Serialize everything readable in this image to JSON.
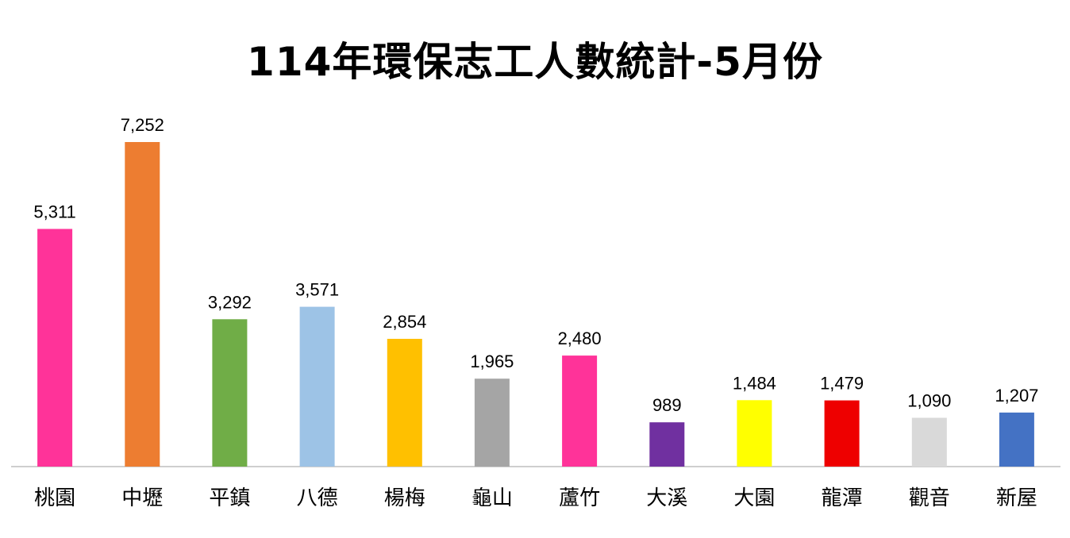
{
  "chart_data": {
    "type": "bar",
    "title": "114年環保志工人數統計-5月份",
    "xlabel": "",
    "ylabel": "",
    "ylim": [
      0,
      8000
    ],
    "grid": false,
    "legend": "none",
    "data_labels": true,
    "categories": [
      "桃園",
      "中壢",
      "平鎮",
      "八德",
      "楊梅",
      "龜山",
      "蘆竹",
      "大溪",
      "大園",
      "龍潭",
      "觀音",
      "新屋"
    ],
    "values": [
      5311,
      7252,
      3292,
      3571,
      2854,
      1965,
      2480,
      989,
      1484,
      1479,
      1090,
      1207
    ],
    "value_labels": [
      "5,311",
      "7,252",
      "3,292",
      "3,571",
      "2,854",
      "1,965",
      "2,480",
      "989",
      "1,484",
      "1,479",
      "1,090",
      "1,207"
    ],
    "colors": [
      "#FF3399",
      "#ED7D31",
      "#70AD47",
      "#9DC3E6",
      "#FFC000",
      "#A5A5A5",
      "#FF3399",
      "#7030A0",
      "#FFFF00",
      "#EE0000",
      "#D9D9D9",
      "#4472C4"
    ]
  }
}
